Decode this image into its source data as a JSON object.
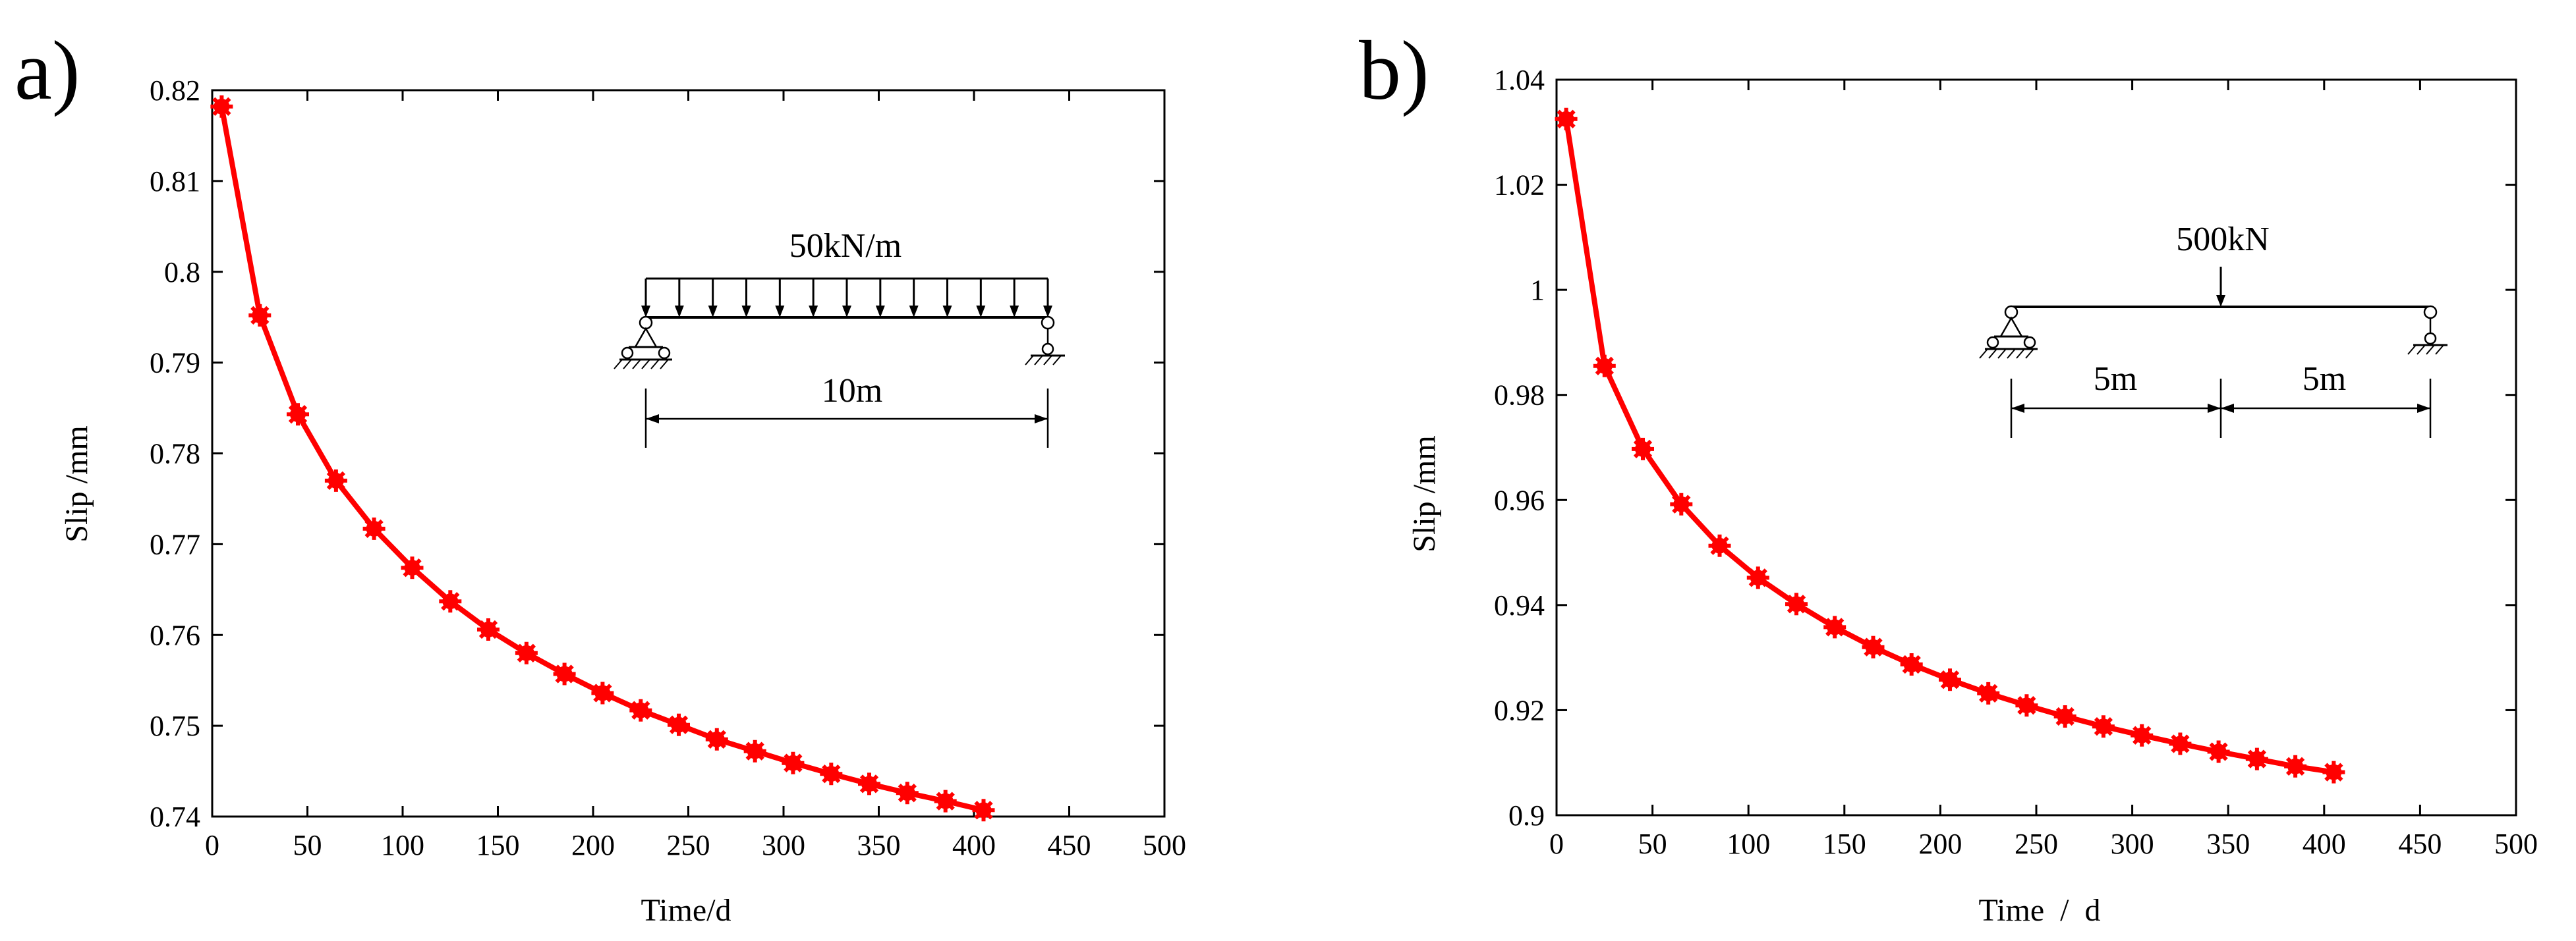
{
  "chart_data": [
    {
      "type": "line",
      "panel_label": "a)",
      "xlabel": "Time/d",
      "ylabel": "Slip /mm",
      "xlim": [
        0,
        500
      ],
      "ylim": [
        0.74,
        0.82
      ],
      "xticks": [
        0,
        50,
        100,
        150,
        200,
        250,
        300,
        350,
        400,
        450,
        500
      ],
      "yticks": [
        0.74,
        0.75,
        0.76,
        0.77,
        0.78,
        0.79,
        0.8,
        0.81,
        0.82
      ],
      "ytick_labels": [
        "0.74",
        "0.75",
        "0.76",
        "0.77",
        "0.78",
        "0.79",
        "0.8",
        "0.81",
        "0.82"
      ],
      "grid": false,
      "line_color": "#ff0000",
      "series": [
        {
          "name": "Slip",
          "x": [
            5,
            25,
            45,
            65,
            85,
            105,
            125,
            145,
            165,
            185,
            205,
            225,
            245,
            265,
            285,
            305,
            325,
            345,
            365,
            385,
            405
          ],
          "values": [
            0.8182,
            0.7952,
            0.7843,
            0.777,
            0.7717,
            0.7674,
            0.7637,
            0.7606,
            0.758,
            0.7557,
            0.7536,
            0.7517,
            0.7501,
            0.7485,
            0.7472,
            0.7459,
            0.7447,
            0.7436,
            0.7426,
            0.7417,
            0.7407
          ]
        }
      ],
      "diagram": {
        "load_label": "50kN/m",
        "span_label": "10m"
      }
    },
    {
      "type": "line",
      "panel_label": "b)",
      "xlabel": "Time  /  d",
      "ylabel": "Slip /mm",
      "xlim": [
        0,
        500
      ],
      "ylim": [
        0.9,
        1.04
      ],
      "xticks": [
        0,
        50,
        100,
        150,
        200,
        250,
        300,
        350,
        400,
        450,
        500
      ],
      "yticks": [
        0.9,
        0.92,
        0.94,
        0.96,
        0.98,
        1.0,
        1.02,
        1.04
      ],
      "ytick_labels": [
        "0.9",
        "0.92",
        "0.94",
        "0.96",
        "0.98",
        "1",
        "1.02",
        "1.04"
      ],
      "grid": false,
      "line_color": "#ff0000",
      "series": [
        {
          "name": "Slip",
          "x": [
            5,
            25,
            45,
            65,
            85,
            105,
            125,
            145,
            165,
            185,
            205,
            225,
            245,
            265,
            285,
            305,
            325,
            345,
            365,
            385,
            405
          ],
          "values": [
            1.0325,
            0.9855,
            0.9697,
            0.9592,
            0.9513,
            0.9452,
            0.9402,
            0.9358,
            0.932,
            0.9287,
            0.9258,
            0.9232,
            0.9209,
            0.9188,
            0.9169,
            0.9152,
            0.9136,
            0.9121,
            0.9107,
            0.9093,
            0.9082
          ]
        }
      ],
      "diagram": {
        "load_label": "500kN",
        "span_left_label": "5m",
        "span_right_label": "5m"
      }
    }
  ]
}
